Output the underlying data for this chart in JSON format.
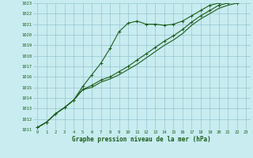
{
  "title": "Graphe pression niveau de la mer (hPa)",
  "bg_color": "#c8ecf0",
  "grid_color": "#8abcc8",
  "line_color": "#1a5c1a",
  "marker_color": "#1a5c1a",
  "xlim": [
    -0.5,
    23.5
  ],
  "ylim": [
    1011,
    1023
  ],
  "xticks": [
    0,
    1,
    2,
    3,
    4,
    5,
    6,
    7,
    8,
    9,
    10,
    11,
    12,
    13,
    14,
    15,
    16,
    17,
    18,
    19,
    20,
    21,
    22,
    23
  ],
  "yticks": [
    1011,
    1012,
    1013,
    1014,
    1015,
    1016,
    1017,
    1018,
    1019,
    1020,
    1021,
    1022,
    1023
  ],
  "series1": [
    1011.2,
    1011.7,
    1012.5,
    1013.1,
    1013.8,
    1015.1,
    1016.2,
    1017.3,
    1018.7,
    1020.3,
    1021.1,
    1021.3,
    1021.0,
    1021.0,
    1020.9,
    1021.0,
    1021.3,
    1021.8,
    1022.3,
    1022.8,
    1023.0,
    1023.1,
    1023.0,
    1023.2
  ],
  "series2": [
    1011.2,
    1011.7,
    1012.5,
    1013.1,
    1013.8,
    1014.8,
    1015.2,
    1015.7,
    1016.0,
    1016.5,
    1017.0,
    1017.6,
    1018.2,
    1018.8,
    1019.4,
    1019.9,
    1020.5,
    1021.2,
    1021.8,
    1022.3,
    1022.8,
    1023.0,
    1023.1,
    1023.2
  ],
  "series3": [
    1011.2,
    1011.7,
    1012.5,
    1013.1,
    1013.8,
    1014.8,
    1015.0,
    1015.5,
    1015.8,
    1016.2,
    1016.7,
    1017.2,
    1017.8,
    1018.4,
    1019.0,
    1019.5,
    1020.1,
    1020.9,
    1021.5,
    1022.0,
    1022.5,
    1022.8,
    1023.0,
    1023.2
  ],
  "label_fontsize": 4.0,
  "xlabel_fontsize": 5.5,
  "linewidth": 0.8,
  "markersize": 2.5
}
